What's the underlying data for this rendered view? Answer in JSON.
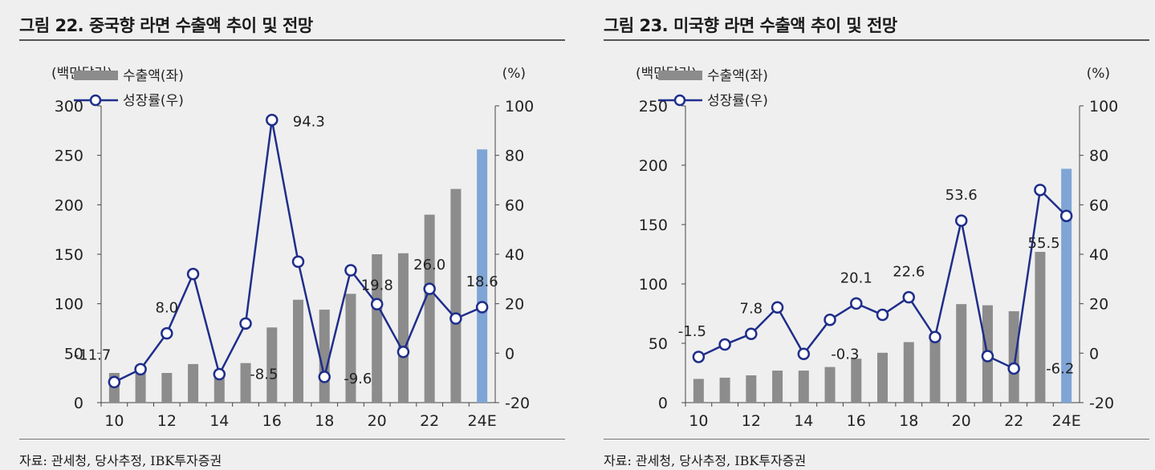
{
  "charts": [
    {
      "title": "그림 22. 중국향 라면 수출액 추이 및 전망",
      "source": "자료: 관세청, 당사추정, IBK투자증권",
      "chart_data": {
        "type": "bar+line",
        "categories": [
          "10",
          "11",
          "12",
          "13",
          "14",
          "15",
          "16",
          "17",
          "18",
          "19",
          "20",
          "21",
          "22",
          "23",
          "24E"
        ],
        "x_tick_labels": [
          "10",
          "12",
          "14",
          "16",
          "18",
          "20",
          "22",
          "24E"
        ],
        "left_axis": {
          "unit": "(백만달러)",
          "min": 0,
          "max": 300,
          "ticks": [
            "300",
            "250",
            "200",
            "150",
            "100",
            "50",
            "0"
          ]
        },
        "right_axis": {
          "unit": "(%)",
          "min": -20,
          "max": 100,
          "ticks": [
            "100",
            "80",
            "60",
            "40",
            "20",
            "0",
            "-20"
          ]
        },
        "series": [
          {
            "name": "수출액(좌)",
            "type": "bar",
            "axis": "left",
            "color": "#8c8c8c",
            "highlight_color": "#7fa5d6",
            "highlight_index": 14,
            "values": [
              30,
              30,
              30,
              39,
              29,
              40,
              76,
              104,
              94,
              110,
              150,
              151,
              190,
              216,
              256
            ]
          },
          {
            "name": "성장률(우)",
            "type": "line",
            "axis": "right",
            "color": "#1f2e8a",
            "values": [
              -11.7,
              -6.5,
              8.0,
              32.0,
              -8.5,
              12.0,
              94.3,
              37.0,
              -9.6,
              33.5,
              19.8,
              0.5,
              26.0,
              14.0,
              18.6
            ]
          }
        ],
        "data_labels": [
          {
            "index": 0,
            "text": "-11.7"
          },
          {
            "index": 2,
            "text": "8.0"
          },
          {
            "index": 4,
            "text": "-8.5"
          },
          {
            "index": 6,
            "text": "94.3"
          },
          {
            "index": 8,
            "text": "-9.6"
          },
          {
            "index": 10,
            "text": "19.8"
          },
          {
            "index": 12,
            "text": "26.0"
          },
          {
            "index": 14,
            "text": "18.6"
          }
        ]
      }
    },
    {
      "title": "그림 23. 미국향 라면 수출액 추이 및 전망",
      "source": "자료: 관세청, 당사추정, IBK투자증권",
      "chart_data": {
        "type": "bar+line",
        "categories": [
          "10",
          "11",
          "12",
          "13",
          "14",
          "15",
          "16",
          "17",
          "18",
          "19",
          "20",
          "21",
          "22",
          "23",
          "24E"
        ],
        "x_tick_labels": [
          "10",
          "12",
          "14",
          "16",
          "18",
          "20",
          "22",
          "24E"
        ],
        "left_axis": {
          "unit": "(백만달러)",
          "min": 0,
          "max": 250,
          "ticks": [
            "250",
            "200",
            "150",
            "100",
            "50",
            "0"
          ]
        },
        "right_axis": {
          "unit": "(%)",
          "min": -20,
          "max": 100,
          "ticks": [
            "100",
            "80",
            "60",
            "40",
            "20",
            "0",
            "-20"
          ]
        },
        "series": [
          {
            "name": "수출액(좌)",
            "type": "bar",
            "axis": "left",
            "color": "#8c8c8c",
            "highlight_color": "#7fa5d6",
            "highlight_index": 14,
            "values": [
              20,
              21,
              23,
              27,
              27,
              30,
              37,
              42,
              51,
              55,
              83,
              82,
              77,
              127,
              197
            ]
          },
          {
            "name": "성장률(우)",
            "type": "line",
            "axis": "right",
            "color": "#1f2e8a",
            "values": [
              -1.5,
              3.5,
              7.8,
              18.5,
              -0.3,
              13.5,
              20.1,
              15.5,
              22.6,
              6.5,
              53.6,
              -1.2,
              -6.2,
              66.0,
              55.5
            ]
          }
        ],
        "data_labels": [
          {
            "index": 0,
            "text": "-1.5"
          },
          {
            "index": 2,
            "text": "7.8"
          },
          {
            "index": 4,
            "text": "-0.3"
          },
          {
            "index": 6,
            "text": "20.1"
          },
          {
            "index": 8,
            "text": "22.6"
          },
          {
            "index": 10,
            "text": "53.6"
          },
          {
            "index": 12,
            "text": "-6.2"
          },
          {
            "index": 14,
            "text": "55.5"
          }
        ]
      }
    }
  ]
}
